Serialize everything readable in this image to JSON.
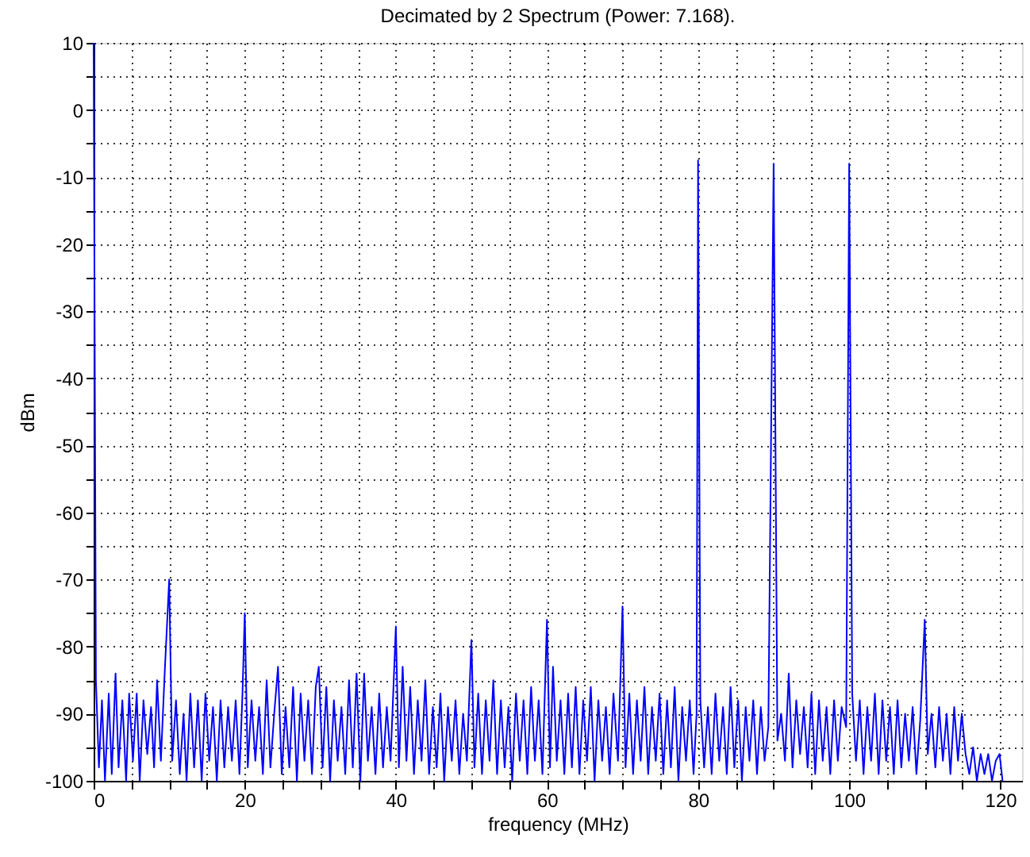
{
  "chart_data": {
    "type": "line",
    "title": "Decimated by 2 Spectrum (Power: 7.168).",
    "xlabel": "frequency (MHz)",
    "ylabel": "dBm",
    "xlim": [
      0,
      122.88
    ],
    "ylim": [
      -100,
      10
    ],
    "xticks": [
      0,
      {
        "value": 5,
        "label": null
      },
      20,
      {
        "value": 10,
        "label": null
      },
      {
        "value": 15,
        "label": null
      },
      {
        "value": 25,
        "label": null
      },
      {
        "value": 30,
        "label": null
      },
      {
        "value": 35,
        "label": null
      },
      40,
      {
        "value": 45,
        "label": null
      },
      {
        "value": 50,
        "label": null
      },
      {
        "value": 55,
        "label": null
      },
      60,
      {
        "value": 65,
        "label": null
      },
      {
        "value": 70,
        "label": null
      },
      {
        "value": 75,
        "label": null
      },
      80,
      {
        "value": 85,
        "label": null
      },
      {
        "value": 90,
        "label": null
      },
      {
        "value": 95,
        "label": null
      },
      100,
      {
        "value": 105,
        "label": null
      },
      {
        "value": 110,
        "label": null
      },
      {
        "value": 115,
        "label": null
      },
      120
    ],
    "yticks": [
      -100,
      {
        "value": -95,
        "label": null
      },
      -90,
      {
        "value": -85,
        "label": null
      },
      -80,
      {
        "value": -75,
        "label": null
      },
      -70,
      {
        "value": -65,
        "label": null
      },
      -60,
      {
        "value": -55,
        "label": null
      },
      -50,
      {
        "value": -45,
        "label": null
      },
      -40,
      {
        "value": -35,
        "label": null
      },
      -30,
      {
        "value": -25,
        "label": null
      },
      -20,
      {
        "value": -15,
        "label": null
      },
      -10,
      {
        "value": -5,
        "label": null
      },
      0,
      {
        "value": 5,
        "label": null
      },
      10
    ],
    "grid": true,
    "line_style": "solid",
    "marker": "none",
    "series": [
      {
        "color": "#0000ff",
        "x": [
          0,
          0.3,
          0.7,
          1.1,
          1.5,
          2,
          2.4,
          2.9,
          3.3,
          3.8,
          4.3,
          4.7,
          5.2,
          5.7,
          6.1,
          6.6,
          7.1,
          7.6,
          8,
          8.4,
          8.9,
          9.4,
          10,
          10.4,
          10.9,
          11.4,
          11.9,
          12.3,
          12.8,
          13.3,
          13.8,
          14.3,
          14.8,
          15.3,
          15.8,
          16.3,
          16.8,
          17.3,
          17.8,
          18.3,
          18.8,
          19.3,
          19.7,
          20,
          20.4,
          20.9,
          21.4,
          21.9,
          22.4,
          22.9,
          23.4,
          23.9,
          24.4,
          24.9,
          25.4,
          25.9,
          26.4,
          26.9,
          27.4,
          27.9,
          28.4,
          28.9,
          29.4,
          29.8,
          30.3,
          30.8,
          31.3,
          31.8,
          32.3,
          32.8,
          33.3,
          33.8,
          34.3,
          34.8,
          35.3,
          35.8,
          36.3,
          36.8,
          37.3,
          37.8,
          38.3,
          38.8,
          39.3,
          40,
          40.4,
          40.9,
          41.4,
          41.9,
          42.4,
          42.9,
          43.4,
          43.9,
          44.4,
          44.9,
          45.4,
          45.9,
          46.4,
          46.9,
          47.4,
          47.9,
          48.4,
          48.9,
          49.4,
          50,
          50.4,
          50.9,
          51.4,
          51.9,
          52.4,
          52.9,
          53.4,
          53.9,
          54.4,
          54.9,
          55.4,
          55.9,
          56.4,
          56.9,
          57.4,
          57.9,
          58.4,
          58.9,
          59.4,
          60,
          60.4,
          60.8,
          61.3,
          61.8,
          62.3,
          62.8,
          63.3,
          63.8,
          64.3,
          64.8,
          65.3,
          65.8,
          66.3,
          66.8,
          67.3,
          67.8,
          68.3,
          68.8,
          69.4,
          70,
          70.4,
          70.9,
          71.4,
          71.9,
          72.4,
          72.9,
          73.4,
          73.9,
          74.4,
          74.9,
          75.4,
          75.9,
          76.4,
          76.9,
          77.4,
          77.9,
          78.4,
          78.9,
          79.4,
          79.8,
          80,
          80.3,
          80.8,
          81.3,
          81.8,
          82.3,
          82.8,
          83.3,
          83.8,
          84.3,
          84.8,
          85.3,
          85.8,
          86.3,
          86.8,
          87.3,
          87.8,
          88.3,
          88.8,
          89.3,
          90,
          90.5,
          91,
          91.5,
          92,
          92.5,
          93,
          93.5,
          94,
          94.5,
          95,
          95.5,
          96,
          96.5,
          97,
          97.5,
          98,
          98.5,
          99,
          99.6,
          100,
          100.4,
          100.9,
          101.4,
          101.9,
          102.4,
          102.9,
          103.4,
          103.9,
          104.4,
          104.9,
          105.4,
          105.9,
          106.4,
          106.9,
          107.4,
          107.9,
          108.4,
          108.9,
          109.4,
          110,
          110.4,
          110.9,
          111.4,
          111.9,
          112.4,
          112.9,
          113.4,
          113.9,
          114.4,
          114.9,
          115.4,
          115.9,
          116.4,
          116.9,
          117.4,
          117.9,
          118.4,
          118.9,
          119.4,
          119.9,
          120.3
        ],
        "values": [
          10,
          -85,
          -98,
          -88,
          -100,
          -87,
          -99,
          -84,
          -98,
          -88,
          -100,
          -87,
          -97,
          -87,
          -100,
          -88,
          -96,
          -89,
          -98,
          -85,
          -97,
          -84,
          -70,
          -97,
          -88,
          -99,
          -90,
          -100,
          -87,
          -98,
          -88,
          -100,
          -87,
          -97,
          -89,
          -100,
          -88,
          -98,
          -89,
          -97,
          -88,
          -99,
          -87,
          -75,
          -98,
          -88,
          -97,
          -89,
          -99,
          -85,
          -98,
          -90,
          -83,
          -99,
          -89,
          -98,
          -86,
          -100,
          -87,
          -97,
          -88,
          -99,
          -86,
          -83,
          -98,
          -86,
          -100,
          -88,
          -97,
          -89,
          -99,
          -85,
          -98,
          -84,
          -100,
          -84,
          -97,
          -89,
          -99,
          -87,
          -98,
          -89,
          -97,
          -77,
          -98,
          -83,
          -97,
          -86,
          -99,
          -88,
          -97,
          -85,
          -99,
          -89,
          -98,
          -87,
          -100,
          -89,
          -97,
          -88,
          -99,
          -90,
          -97,
          -79,
          -98,
          -87,
          -99,
          -88,
          -97,
          -85,
          -99,
          -88,
          -98,
          -89,
          -100,
          -87,
          -97,
          -88,
          -99,
          -86,
          -97,
          -88,
          -99,
          -76,
          -98,
          -83,
          -97,
          -88,
          -99,
          -87,
          -98,
          -86,
          -99,
          -88,
          -97,
          -86,
          -100,
          -88,
          -97,
          -89,
          -99,
          -87,
          -97,
          -74,
          -98,
          -87,
          -99,
          -88,
          -97,
          -86,
          -99,
          -89,
          -97,
          -87,
          -99,
          -88,
          -98,
          -86,
          -100,
          -89,
          -97,
          -88,
          -99,
          -90,
          -7.5,
          -88,
          -98,
          -89,
          -99,
          -87,
          -97,
          -89,
          -99,
          -86,
          -98,
          -88,
          -100,
          -89,
          -97,
          -88,
          -99,
          -89,
          -97,
          -92,
          -8,
          -94,
          -90,
          -97,
          -84,
          -98,
          -88,
          -96,
          -89,
          -98,
          -87,
          -99,
          -88,
          -97,
          -89,
          -99,
          -88,
          -97,
          -89,
          -92,
          -8,
          -87,
          -97,
          -88,
          -99,
          -89,
          -97,
          -87,
          -99,
          -88,
          -97,
          -89,
          -99,
          -88,
          -98,
          -90,
          -97,
          -89,
          -99,
          -91,
          -76,
          -96,
          -90,
          -98,
          -89,
          -97,
          -90,
          -99,
          -89,
          -97,
          -90,
          -96,
          -99,
          -95,
          -100,
          -96,
          -99,
          -96,
          -100,
          -97,
          -96,
          -100
        ]
      }
    ]
  }
}
